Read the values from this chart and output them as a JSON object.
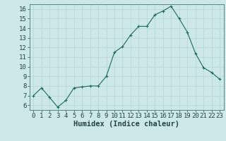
{
  "x": [
    0,
    1,
    2,
    3,
    4,
    5,
    6,
    7,
    8,
    9,
    10,
    11,
    12,
    13,
    14,
    15,
    16,
    17,
    18,
    19,
    20,
    21,
    22,
    23
  ],
  "y": [
    7.0,
    7.8,
    6.8,
    5.8,
    6.5,
    7.8,
    7.9,
    8.0,
    8.0,
    9.0,
    11.5,
    12.1,
    13.3,
    14.2,
    14.2,
    15.4,
    15.8,
    16.3,
    15.0,
    13.6,
    11.4,
    9.9,
    9.4,
    8.7
  ],
  "xlabel": "Humidex (Indice chaleur)",
  "ylim_min": 6,
  "ylim_max": 16,
  "xlim_min": 0,
  "xlim_max": 23,
  "yticks": [
    6,
    7,
    8,
    9,
    10,
    11,
    12,
    13,
    14,
    15,
    16
  ],
  "xticks": [
    0,
    1,
    2,
    3,
    4,
    5,
    6,
    7,
    8,
    9,
    10,
    11,
    12,
    13,
    14,
    15,
    16,
    17,
    18,
    19,
    20,
    21,
    22,
    23
  ],
  "line_color": "#1a6b5a",
  "marker": "+",
  "bg_color": "#cce8e8",
  "grid_color": "#b8d8d8",
  "tick_fontsize": 6.5,
  "label_fontsize": 7.5,
  "spine_color": "#447777"
}
